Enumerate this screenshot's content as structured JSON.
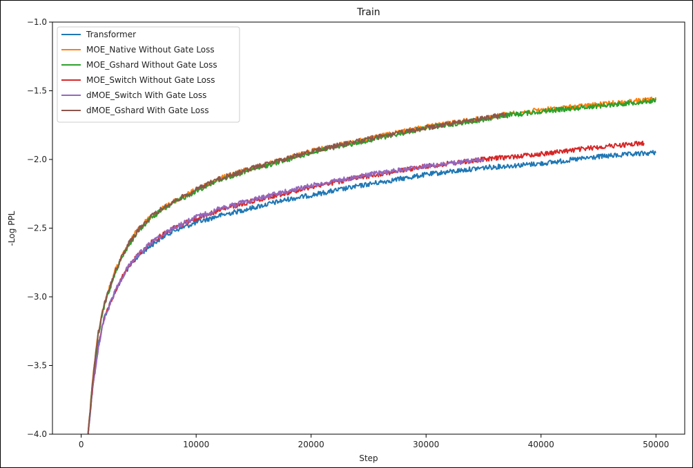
{
  "chart_data": {
    "type": "line",
    "title": "Train",
    "xlabel": "Step",
    "ylabel": "-Log PPL",
    "xlim": [
      -2500,
      52500
    ],
    "ylim": [
      -4.0,
      -1.0
    ],
    "x_ticks": [
      0,
      10000,
      20000,
      30000,
      40000,
      50000
    ],
    "x_tick_labels": [
      "0",
      "10000",
      "20000",
      "30000",
      "40000",
      "50000"
    ],
    "y_ticks": [
      -4.0,
      -3.5,
      -3.0,
      -2.5,
      -2.0,
      -1.5,
      -1.0
    ],
    "y_tick_labels": [
      "−4.0",
      "−3.5",
      "−3.0",
      "−2.5",
      "−2.0",
      "−1.5",
      "−1.0"
    ],
    "grid": false,
    "legend_position": "top-left",
    "series": [
      {
        "name": "Transformer",
        "color": "#1f77b4",
        "x": [
          600,
          1000,
          1500,
          2000,
          3000,
          4000,
          5000,
          6000,
          7000,
          8000,
          10000,
          12000,
          15000,
          18000,
          20000,
          25000,
          30000,
          35000,
          40000,
          45000,
          50000
        ],
        "y": [
          -4.0,
          -3.65,
          -3.35,
          -3.15,
          -2.95,
          -2.8,
          -2.7,
          -2.63,
          -2.57,
          -2.52,
          -2.46,
          -2.41,
          -2.35,
          -2.29,
          -2.26,
          -2.18,
          -2.11,
          -2.06,
          -2.03,
          -1.98,
          -1.95
        ]
      },
      {
        "name": "MOE_Native Without Gate Loss",
        "color": "#ff7f0e",
        "x": [
          600,
          1000,
          1500,
          2000,
          3000,
          4000,
          5000,
          6000,
          7000,
          8000,
          10000,
          12000,
          15000,
          18000,
          20000,
          25000,
          30000,
          35000,
          37000,
          40000,
          45000,
          50000
        ],
        "y": [
          -4.0,
          -3.6,
          -3.25,
          -3.05,
          -2.8,
          -2.63,
          -2.5,
          -2.42,
          -2.36,
          -2.31,
          -2.22,
          -2.14,
          -2.06,
          -1.99,
          -1.94,
          -1.85,
          -1.76,
          -1.7,
          -1.67,
          -1.64,
          -1.6,
          -1.56
        ]
      },
      {
        "name": "MOE_Gshard Without Gate Loss",
        "color": "#2ca02c",
        "x": [
          600,
          1000,
          1500,
          2000,
          3000,
          4000,
          5000,
          6000,
          7000,
          8000,
          10000,
          12000,
          15000,
          18000,
          20000,
          25000,
          30000,
          35000,
          37000,
          40000,
          45000,
          50000
        ],
        "y": [
          -4.0,
          -3.62,
          -3.27,
          -3.07,
          -2.81,
          -2.64,
          -2.52,
          -2.43,
          -2.37,
          -2.32,
          -2.23,
          -2.15,
          -2.07,
          -2.0,
          -1.95,
          -1.86,
          -1.77,
          -1.71,
          -1.68,
          -1.65,
          -1.61,
          -1.57
        ]
      },
      {
        "name": "MOE_Switch Without Gate Loss",
        "color": "#d62728",
        "x": [
          600,
          1000,
          1500,
          2000,
          3000,
          4000,
          5000,
          6000,
          7000,
          8000,
          10000,
          12000,
          15000,
          18000,
          20000,
          25000,
          30000,
          35000,
          40000,
          45000,
          49000
        ],
        "y": [
          -4.0,
          -3.66,
          -3.36,
          -3.16,
          -2.95,
          -2.79,
          -2.69,
          -2.61,
          -2.55,
          -2.5,
          -2.43,
          -2.37,
          -2.3,
          -2.24,
          -2.2,
          -2.12,
          -2.05,
          -2.0,
          -1.96,
          -1.91,
          -1.88
        ]
      },
      {
        "name": "dMOE_Switch With Gate Loss",
        "color": "#9467bd",
        "x": [
          600,
          1000,
          1500,
          2000,
          3000,
          4000,
          5000,
          6000,
          7000,
          8000,
          10000,
          12000,
          15000,
          18000,
          20000,
          25000,
          30000,
          35000
        ],
        "y": [
          -4.0,
          -3.66,
          -3.36,
          -3.16,
          -2.95,
          -2.79,
          -2.69,
          -2.61,
          -2.55,
          -2.5,
          -2.42,
          -2.36,
          -2.29,
          -2.23,
          -2.19,
          -2.11,
          -2.05,
          -2.0
        ]
      },
      {
        "name": "dMOE_Gshard With Gate Loss",
        "color": "#8c564b",
        "x": [
          600,
          1000,
          1500,
          2000,
          3000,
          4000,
          5000,
          6000,
          7000,
          8000,
          10000,
          12000,
          15000,
          18000,
          20000,
          25000,
          30000,
          35000,
          37000
        ],
        "y": [
          -4.0,
          -3.61,
          -3.26,
          -3.06,
          -2.8,
          -2.63,
          -2.51,
          -2.42,
          -2.36,
          -2.31,
          -2.22,
          -2.14,
          -2.06,
          -1.99,
          -1.94,
          -1.85,
          -1.77,
          -1.7,
          -1.67
        ]
      }
    ]
  }
}
